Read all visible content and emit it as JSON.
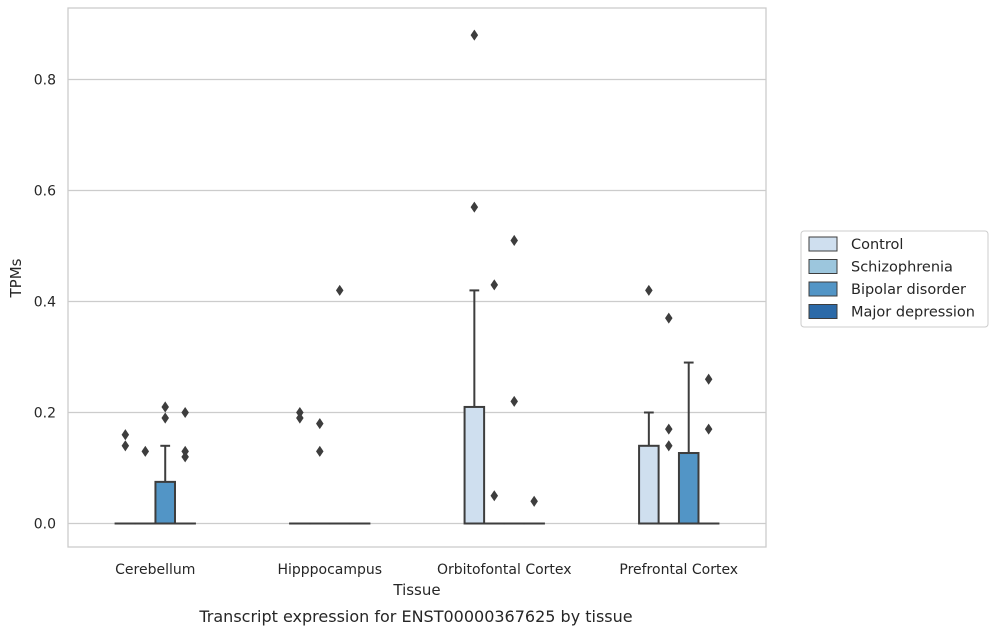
{
  "chart_data": {
    "type": "box",
    "xlabel": "Tissue",
    "ylabel": "TPMs",
    "caption": "Transcript expression for ENST00000367625 by tissue",
    "ylim": [
      -0.043,
      0.93
    ],
    "yticks": [
      0.0,
      0.2,
      0.4,
      0.6,
      0.8
    ],
    "ytick_labels": [
      "0.0",
      "0.2",
      "0.4",
      "0.6",
      "0.8"
    ],
    "grid": "horizontal",
    "legend_position": "right",
    "categories": [
      "Cerebellum",
      "Hipppocampus",
      "Orbitofontal Cortex",
      "Prefrontal Cortex"
    ],
    "series": [
      {
        "name": "Control",
        "color": "#cfdfef",
        "boxes": [
          {
            "q1": 0,
            "median": 0,
            "q3": 0,
            "whisker_low": 0,
            "whisker_high": 0,
            "outliers": [
              0.16,
              0.14
            ]
          },
          {
            "q1": 0,
            "median": 0,
            "q3": 0,
            "whisker_low": 0,
            "whisker_high": 0,
            "outliers": [
              0.2,
              0.19
            ]
          },
          {
            "q1": 0,
            "median": 0,
            "q3": 0.21,
            "whisker_low": 0,
            "whisker_high": 0.42,
            "outliers": [
              0.88,
              0.57
            ]
          },
          {
            "q1": 0,
            "median": 0,
            "q3": 0.14,
            "whisker_low": 0,
            "whisker_high": 0.2,
            "outliers": [
              0.42
            ]
          }
        ]
      },
      {
        "name": "Schizophrenia",
        "color": "#9cc6dd",
        "boxes": [
          {
            "q1": 0,
            "median": 0,
            "q3": 0,
            "whisker_low": 0,
            "whisker_high": 0,
            "outliers": [
              0.13
            ]
          },
          {
            "q1": 0,
            "median": 0,
            "q3": 0,
            "whisker_low": 0,
            "whisker_high": 0,
            "outliers": [
              0.18,
              0.13
            ]
          },
          {
            "q1": 0,
            "median": 0,
            "q3": 0,
            "whisker_low": 0,
            "whisker_high": 0,
            "outliers": [
              0.43,
              0.05
            ]
          },
          {
            "q1": 0,
            "median": 0,
            "q3": 0,
            "whisker_low": 0,
            "whisker_high": 0,
            "outliers": [
              0.37,
              0.17,
              0.14
            ]
          }
        ]
      },
      {
        "name": "Bipolar disorder",
        "color": "#5295c6",
        "boxes": [
          {
            "q1": 0,
            "median": 0,
            "q3": 0.075,
            "whisker_low": 0,
            "whisker_high": 0.14,
            "outliers": [
              0.21,
              0.19
            ]
          },
          {
            "q1": 0,
            "median": 0,
            "q3": 0,
            "whisker_low": 0,
            "whisker_high": 0,
            "outliers": [
              0.42
            ]
          },
          {
            "q1": 0,
            "median": 0,
            "q3": 0,
            "whisker_low": 0,
            "whisker_high": 0,
            "outliers": [
              0.51,
              0.22
            ]
          },
          {
            "q1": 0,
            "median": 0,
            "q3": 0.127,
            "whisker_low": 0,
            "whisker_high": 0.29,
            "outliers": []
          }
        ]
      },
      {
        "name": "Major depression",
        "color": "#2c6aa8",
        "boxes": [
          {
            "q1": 0,
            "median": 0,
            "q3": 0,
            "whisker_low": 0,
            "whisker_high": 0,
            "outliers": [
              0.2,
              0.13,
              0.12
            ]
          },
          {
            "q1": 0,
            "median": 0,
            "q3": 0,
            "whisker_low": 0,
            "whisker_high": 0,
            "outliers": []
          },
          {
            "q1": 0,
            "median": 0,
            "q3": 0,
            "whisker_low": 0,
            "whisker_high": 0,
            "outliers": [
              0.04
            ]
          },
          {
            "q1": 0,
            "median": 0,
            "q3": 0,
            "whisker_low": 0,
            "whisker_high": 0,
            "outliers": [
              0.26,
              0.17
            ]
          }
        ]
      }
    ]
  }
}
